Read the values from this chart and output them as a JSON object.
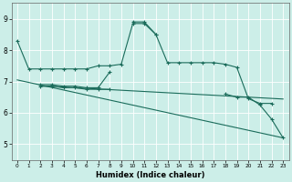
{
  "title": "",
  "xlabel": "Humidex (Indice chaleur)",
  "ylabel": "",
  "bg_color": "#cceee8",
  "grid_color": "#ffffff",
  "line_color": "#1a6b5a",
  "xlim": [
    -0.5,
    23.5
  ],
  "ylim": [
    4.5,
    9.5
  ],
  "xticks": [
    0,
    1,
    2,
    3,
    4,
    5,
    6,
    7,
    8,
    9,
    10,
    11,
    12,
    13,
    14,
    15,
    16,
    17,
    18,
    19,
    20,
    21,
    22,
    23
  ],
  "yticks": [
    5,
    6,
    7,
    8,
    9
  ],
  "series": [
    {
      "x": [
        0,
        1,
        2,
        3,
        4,
        5,
        6,
        7,
        8,
        9,
        10,
        11,
        12,
        13,
        14,
        15,
        16,
        17,
        18,
        19,
        20,
        21,
        22
      ],
      "y": [
        8.3,
        7.4,
        7.4,
        7.4,
        7.4,
        7.4,
        7.4,
        7.5,
        7.5,
        7.55,
        8.85,
        8.85,
        8.5,
        7.6,
        7.6,
        7.6,
        7.6,
        7.6,
        7.55,
        7.45,
        6.45,
        6.3,
        6.3
      ],
      "marker": true
    },
    {
      "segments": [
        {
          "x": [
            2,
            3,
            4,
            5,
            6,
            7,
            8
          ],
          "y": [
            6.9,
            6.9,
            6.85,
            6.85,
            6.8,
            6.8,
            7.3
          ]
        },
        {
          "x": [
            10,
            11,
            12
          ],
          "y": [
            8.9,
            8.9,
            8.5
          ]
        },
        {
          "x": [
            18,
            19,
            20,
            21,
            22,
            23
          ],
          "y": [
            6.6,
            6.5,
            6.5,
            6.25,
            5.8,
            5.2
          ]
        }
      ],
      "marker": true
    },
    {
      "x": [
        2,
        3,
        4,
        5,
        6,
        7,
        8
      ],
      "y": [
        6.85,
        6.85,
        6.8,
        6.8,
        6.75,
        6.75,
        6.75
      ],
      "marker": true
    },
    {
      "x": [
        0,
        23
      ],
      "y": [
        7.05,
        5.2
      ],
      "marker": false
    },
    {
      "x": [
        2,
        3,
        4,
        5,
        6,
        7,
        8,
        9,
        10,
        11,
        12,
        13,
        14,
        15,
        16,
        17,
        18,
        19,
        20,
        21,
        22,
        23
      ],
      "y": [
        6.85,
        6.85,
        6.82,
        6.8,
        6.78,
        6.76,
        6.74,
        6.72,
        6.7,
        6.68,
        6.66,
        6.64,
        6.62,
        6.6,
        6.58,
        6.56,
        6.54,
        6.52,
        6.5,
        6.48,
        6.46,
        6.44
      ],
      "marker": false
    }
  ]
}
